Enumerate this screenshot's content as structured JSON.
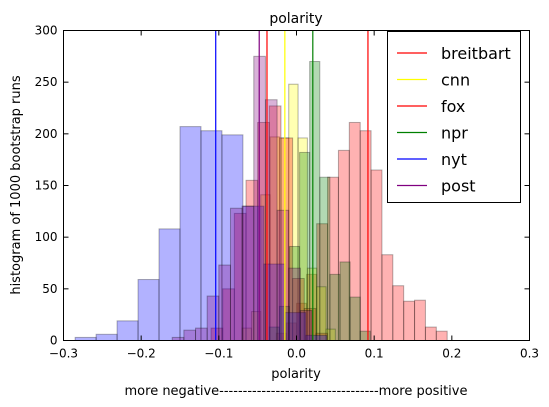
{
  "chart_data": {
    "type": "histogram",
    "title": "polarity",
    "xlabel": "polarity",
    "xlabel_note": "more negative----------------------------------more positive",
    "ylabel": "histogram of 1000 bootstrap runs",
    "xlim": [
      -0.3,
      0.3
    ],
    "ylim": [
      0,
      300
    ],
    "xticks": [
      -0.3,
      -0.2,
      -0.1,
      0.0,
      0.1,
      0.2,
      0.3
    ],
    "xtick_labels": [
      "−0.3",
      "−0.2",
      "−0.1",
      "0.0",
      "0.1",
      "0.2",
      "0.3"
    ],
    "yticks": [
      0,
      50,
      100,
      150,
      200,
      250,
      300
    ],
    "ytick_labels": [
      "0",
      "50",
      "100",
      "150",
      "200",
      "250",
      "300"
    ],
    "legend_position": "top-right",
    "series": [
      {
        "name": "breitbart",
        "color": "#ff0000",
        "mean": 0.092,
        "bins": [
          [
            -0.026,
            -0.013,
            7
          ],
          [
            -0.013,
            0.0,
            17
          ],
          [
            0.0,
            0.013,
            36
          ],
          [
            0.013,
            0.026,
            64
          ],
          [
            0.026,
            0.04,
            113
          ],
          [
            0.04,
            0.054,
            158
          ],
          [
            0.054,
            0.068,
            184
          ],
          [
            0.068,
            0.082,
            211
          ],
          [
            0.082,
            0.096,
            203
          ],
          [
            0.096,
            0.11,
            165
          ],
          [
            0.11,
            0.124,
            83
          ],
          [
            0.124,
            0.138,
            53
          ],
          [
            0.138,
            0.152,
            38
          ],
          [
            0.152,
            0.166,
            39
          ],
          [
            0.166,
            0.18,
            13
          ],
          [
            0.18,
            0.194,
            9
          ]
        ]
      },
      {
        "name": "cnn",
        "color": "#ffff00",
        "mean": -0.015,
        "bins": [
          [
            -0.07,
            -0.058,
            12
          ],
          [
            -0.058,
            -0.046,
            28
          ],
          [
            -0.046,
            -0.034,
            141
          ],
          [
            -0.034,
            -0.022,
            197
          ],
          [
            -0.022,
            -0.01,
            196
          ],
          [
            -0.01,
            0.002,
            248
          ],
          [
            0.002,
            0.014,
            196
          ],
          [
            0.014,
            0.026,
            70
          ],
          [
            0.026,
            0.038,
            52
          ],
          [
            0.038,
            0.05,
            11
          ]
        ]
      },
      {
        "name": "fox",
        "color": "#ff0000",
        "mean": -0.038,
        "bins": [
          [
            -0.11,
            -0.095,
            12
          ],
          [
            -0.095,
            -0.08,
            50
          ],
          [
            -0.08,
            -0.065,
            123
          ],
          [
            -0.065,
            -0.05,
            155
          ],
          [
            -0.05,
            -0.035,
            211
          ],
          [
            -0.035,
            -0.02,
            227
          ],
          [
            -0.02,
            -0.005,
            196
          ],
          [
            -0.005,
            0.01,
            60
          ],
          [
            0.01,
            0.025,
            31
          ],
          [
            0.025,
            0.04,
            7
          ]
        ]
      },
      {
        "name": "npr",
        "color": "#008000",
        "mean": 0.021,
        "bins": [
          [
            -0.035,
            -0.022,
            13
          ],
          [
            -0.022,
            -0.009,
            33
          ],
          [
            -0.009,
            0.004,
            91
          ],
          [
            0.004,
            0.017,
            182
          ],
          [
            0.017,
            0.03,
            270
          ],
          [
            0.03,
            0.043,
            158
          ],
          [
            0.043,
            0.056,
            64
          ],
          [
            0.056,
            0.069,
            76
          ],
          [
            0.069,
            0.082,
            42
          ],
          [
            0.082,
            0.095,
            9
          ]
        ]
      },
      {
        "name": "nyt",
        "color": "#0000ff",
        "mean": -0.104,
        "bins": [
          [
            -0.285,
            -0.258,
            3
          ],
          [
            -0.258,
            -0.231,
            6
          ],
          [
            -0.231,
            -0.204,
            19
          ],
          [
            -0.204,
            -0.177,
            59
          ],
          [
            -0.177,
            -0.15,
            108
          ],
          [
            -0.15,
            -0.123,
            207
          ],
          [
            -0.123,
            -0.096,
            203
          ],
          [
            -0.096,
            -0.069,
            199
          ],
          [
            -0.069,
            -0.042,
            130
          ],
          [
            -0.042,
            -0.015,
            74
          ],
          [
            -0.015,
            0.012,
            27
          ],
          [
            0.012,
            0.039,
            5
          ]
        ]
      },
      {
        "name": "post",
        "color": "#800080",
        "mean": -0.048,
        "bins": [
          [
            -0.16,
            -0.145,
            3
          ],
          [
            -0.145,
            -0.13,
            10
          ],
          [
            -0.13,
            -0.115,
            12
          ],
          [
            -0.115,
            -0.1,
            43
          ],
          [
            -0.1,
            -0.085,
            73
          ],
          [
            -0.085,
            -0.07,
            128
          ],
          [
            -0.07,
            -0.055,
            130
          ],
          [
            -0.055,
            -0.04,
            275
          ],
          [
            -0.04,
            -0.025,
            233
          ],
          [
            -0.025,
            -0.01,
            126
          ],
          [
            -0.01,
            0.005,
            70
          ],
          [
            0.005,
            0.02,
            29
          ]
        ]
      }
    ]
  }
}
